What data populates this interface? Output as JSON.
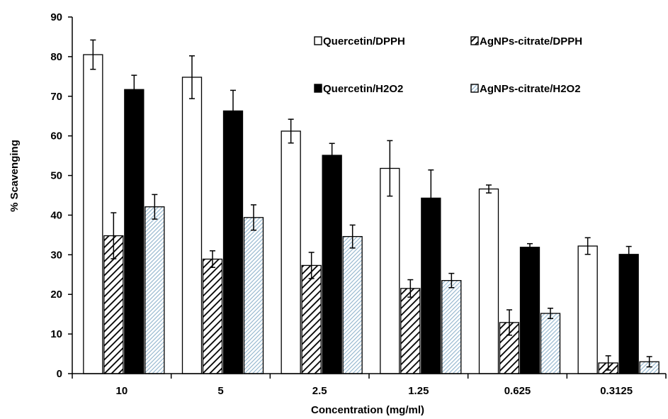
{
  "chart_data": {
    "type": "bar",
    "xlabel": "Concentration (mg/ml)",
    "ylabel": "% Scavenging",
    "ylim": [
      0,
      90
    ],
    "yticks": [
      0,
      10,
      20,
      30,
      40,
      50,
      60,
      70,
      80,
      90
    ],
    "grid": false,
    "legend_position": "top-right",
    "categories": [
      "10",
      "5",
      "2.5",
      "1.25",
      "0.625",
      "0.3125"
    ],
    "series": [
      {
        "name": "Quercetin/DPPH",
        "fill": "white",
        "color": "#ffffff",
        "values": [
          80.5,
          74.8,
          61.2,
          51.8,
          46.6,
          32.2
        ],
        "errors": [
          3.7,
          5.4,
          3.0,
          7.0,
          1.0,
          2.1
        ]
      },
      {
        "name": "AgNPs-citrate/DPPH",
        "fill": "black-hatch",
        "color": "#000000",
        "values": [
          34.8,
          28.9,
          27.3,
          21.5,
          12.9,
          2.7
        ],
        "errors": [
          5.8,
          2.1,
          3.3,
          2.2,
          3.2,
          1.8
        ]
      },
      {
        "name": "Quercetin/H2O2",
        "fill": "solid-black",
        "color": "#000000",
        "values": [
          71.7,
          66.3,
          55.1,
          44.3,
          31.9,
          30.1
        ],
        "errors": [
          3.6,
          5.2,
          3.0,
          7.1,
          0.9,
          2.0
        ]
      },
      {
        "name": "AgNPs-citrate/H2O2",
        "fill": "blue-hatch",
        "color": "#a9c4d6",
        "values": [
          42.1,
          39.4,
          34.6,
          23.5,
          15.2,
          3.0
        ],
        "errors": [
          3.1,
          3.2,
          2.9,
          1.8,
          1.3,
          1.3
        ]
      }
    ]
  }
}
